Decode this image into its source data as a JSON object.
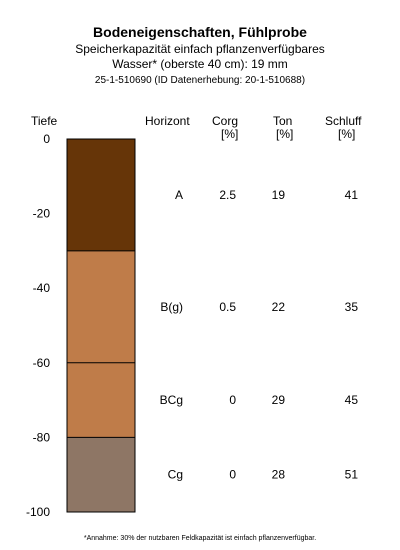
{
  "header": {
    "title": "Bodeneigenschaften, Fühlprobe",
    "subtitle_line1": "Speicherkapazität einfach pflanzenverfügbares",
    "subtitle_line2": "Wasser* (oberste 40 cm): 19 mm",
    "ids": "25-1-510690 (ID Datenerhebung: 20-1-510688)"
  },
  "columns": {
    "depth": "Tiefe",
    "horizon": "Horizont",
    "corg": "Corg",
    "corg_unit": "[%]",
    "ton": "Ton",
    "ton_unit": "[%]",
    "schluff": "Schluff",
    "schluff_unit": "[%]"
  },
  "footnote": "*Annahme: 30% der nutzbaren Feldkapazität ist einfach pflanzenverfügbar.",
  "colors": {
    "outline": "#000000"
  },
  "chart_data": {
    "type": "table",
    "ylabel": "Tiefe",
    "ylim": [
      -100,
      0
    ],
    "yticks": [
      0,
      -20,
      -40,
      -60,
      -80,
      -100
    ],
    "layers": [
      {
        "horizon": "A",
        "top": 0,
        "bottom": -30,
        "color": "#663508",
        "corg": "2.5",
        "ton": "19",
        "schluff": "41"
      },
      {
        "horizon": "B(g)",
        "top": -30,
        "bottom": -60,
        "color": "#BF7C49",
        "corg": "0.5",
        "ton": "22",
        "schluff": "35"
      },
      {
        "horizon": "BCg",
        "top": -60,
        "bottom": -80,
        "color": "#BF7C49",
        "corg": "0",
        "ton": "29",
        "schluff": "45"
      },
      {
        "horizon": "Cg",
        "top": -80,
        "bottom": -100,
        "color": "#8E7665",
        "corg": "0",
        "ton": "28",
        "schluff": "51"
      }
    ]
  }
}
